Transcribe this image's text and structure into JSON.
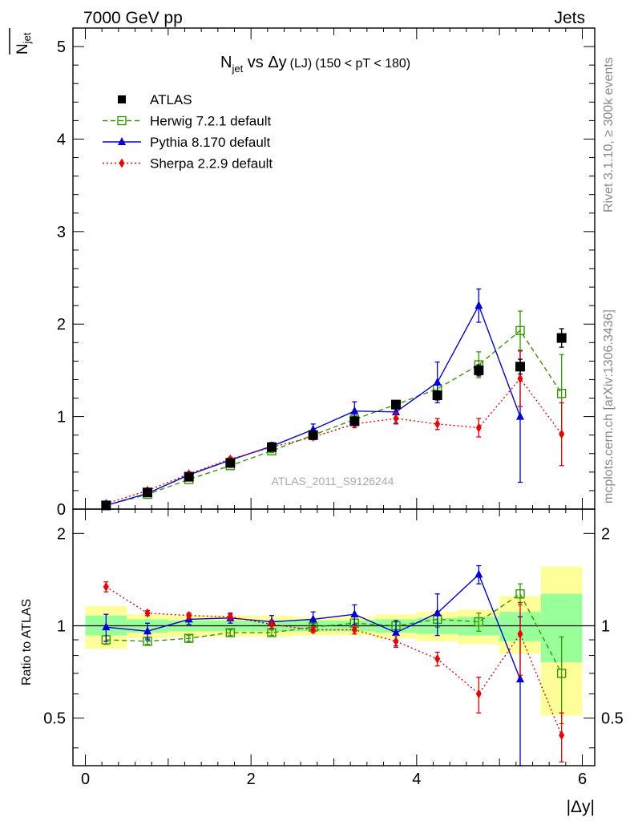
{
  "header": {
    "left": "7000 GeV pp",
    "right": "Jets"
  },
  "side_text": {
    "rivet": "Rivet 3.1.10, ≥ 300k events",
    "mcplots": "mcplots.cern.ch [arXiv:1306.3436]"
  },
  "watermark": "ATLAS_2011_S9126244",
  "title": {
    "main": "N",
    "sub": "jet",
    "vs": " vs ",
    "delta": "Δ",
    "y": "y",
    "lj": "(LJ)",
    "cut": "(150 < pT < 180)"
  },
  "y_axis_label": {
    "main": "N",
    "sub": "jet"
  },
  "ratio_label": "Ratio to ATLAS",
  "x_axis_label": "|Δy|",
  "colors": {
    "data": "#000000",
    "herwig": "#339900",
    "pythia": "#0000dd",
    "sherpa": "#ee0000",
    "band_yellow": "#ffff99",
    "band_green": "#99ff99"
  },
  "legend": [
    {
      "key": "data",
      "label": "ATLAS"
    },
    {
      "key": "herwig",
      "label": "Herwig 7.2.1 default"
    },
    {
      "key": "pythia",
      "label": "Pythia 8.170 default"
    },
    {
      "key": "sherpa",
      "label": "Sherpa 2.2.9 default"
    }
  ],
  "chart_data": {
    "type": "scatter",
    "x": [
      0.25,
      0.75,
      1.25,
      1.75,
      2.25,
      2.75,
      3.25,
      3.75,
      4.25,
      4.75,
      5.25,
      5.75
    ],
    "xlim": [
      -0.15,
      6.15
    ],
    "xticks": [
      0,
      2,
      4,
      6
    ],
    "bin_half_width": 0.25,
    "main": {
      "ylim": [
        0,
        5.2
      ],
      "yticks": [
        0,
        1,
        2,
        3,
        4,
        5
      ],
      "ytick_labels": [
        "0",
        "1",
        "2",
        "3",
        "4",
        "5"
      ],
      "series": [
        {
          "name": "ATLAS",
          "key": "data",
          "values": [
            0.04,
            0.18,
            0.35,
            0.5,
            0.67,
            0.8,
            0.95,
            1.13,
            1.23,
            1.5,
            1.54,
            1.85
          ],
          "errors": [
            0.01,
            0.01,
            0.02,
            0.02,
            0.02,
            0.03,
            0.03,
            0.04,
            0.05,
            0.06,
            0.08,
            0.1
          ]
        },
        {
          "name": "Herwig 7.2.1 default",
          "key": "herwig",
          "values": [
            0.04,
            0.16,
            0.32,
            0.47,
            0.63,
            0.8,
            0.97,
            1.13,
            1.3,
            1.56,
            1.93,
            1.25
          ],
          "errors": [
            0.01,
            0.01,
            0.01,
            0.02,
            0.02,
            0.03,
            0.03,
            0.04,
            0.07,
            0.14,
            0.21,
            0.42
          ]
        },
        {
          "name": "Pythia 8.170 default",
          "key": "pythia",
          "values": [
            0.04,
            0.17,
            0.37,
            0.53,
            0.68,
            0.86,
            1.06,
            1.05,
            1.37,
            2.2,
            1.0,
            null
          ],
          "errors": [
            0.01,
            0.01,
            0.02,
            0.03,
            0.04,
            0.06,
            0.1,
            0.12,
            0.22,
            0.18,
            0.71,
            null
          ]
        },
        {
          "name": "Sherpa 2.2.9 default",
          "key": "sherpa",
          "values": [
            0.06,
            0.2,
            0.38,
            0.54,
            0.67,
            0.78,
            0.92,
            0.98,
            0.92,
            0.88,
            1.41,
            0.81
          ],
          "errors": [
            0.01,
            0.01,
            0.02,
            0.02,
            0.03,
            0.03,
            0.04,
            0.06,
            0.06,
            0.1,
            0.3,
            0.34
          ]
        }
      ]
    },
    "ratio": {
      "ylim": [
        0.35,
        2.4
      ],
      "scale": "log",
      "yticks": [
        0.5,
        1,
        2
      ],
      "ytick_labels": [
        "0.5",
        "1",
        "2"
      ],
      "band_yellow": [
        [
          0.84,
          1.16
        ],
        [
          0.91,
          1.09
        ],
        [
          0.92,
          1.08
        ],
        [
          0.92,
          1.08
        ],
        [
          0.92,
          1.08
        ],
        [
          0.93,
          1.07
        ],
        [
          0.93,
          1.07
        ],
        [
          0.91,
          1.09
        ],
        [
          0.89,
          1.11
        ],
        [
          0.87,
          1.13
        ],
        [
          0.81,
          1.25
        ],
        [
          0.51,
          1.56
        ]
      ],
      "band_green": [
        [
          0.93,
          1.08
        ],
        [
          0.95,
          1.05
        ],
        [
          0.96,
          1.04
        ],
        [
          0.96,
          1.04
        ],
        [
          0.96,
          1.04
        ],
        [
          0.96,
          1.04
        ],
        [
          0.96,
          1.04
        ],
        [
          0.95,
          1.05
        ],
        [
          0.94,
          1.06
        ],
        [
          0.93,
          1.07
        ],
        [
          0.89,
          1.11
        ],
        [
          0.76,
          1.27
        ]
      ],
      "series": [
        {
          "key": "herwig",
          "values": [
            0.9,
            0.89,
            0.91,
            0.95,
            0.95,
            0.99,
            1.02,
            1.0,
            1.05,
            1.03,
            1.27,
            0.7
          ],
          "errors": [
            0.03,
            0.02,
            0.02,
            0.02,
            0.02,
            0.02,
            0.03,
            0.03,
            0.06,
            0.07,
            0.1,
            0.22
          ]
        },
        {
          "key": "pythia",
          "values": [
            0.99,
            0.96,
            1.05,
            1.06,
            1.03,
            1.05,
            1.09,
            0.95,
            1.1,
            1.47,
            0.67,
            null
          ],
          "errors": [
            0.1,
            0.06,
            0.04,
            0.04,
            0.05,
            0.06,
            0.08,
            0.09,
            0.17,
            0.1,
            0.4,
            null
          ]
        },
        {
          "key": "sherpa",
          "values": [
            1.34,
            1.1,
            1.08,
            1.07,
            1.01,
            0.97,
            0.97,
            0.89,
            0.78,
            0.6,
            0.94,
            0.44
          ],
          "errors": [
            0.05,
            0.02,
            0.02,
            0.02,
            0.03,
            0.02,
            0.03,
            0.04,
            0.04,
            0.08,
            0.25,
            0.08
          ]
        }
      ]
    }
  }
}
